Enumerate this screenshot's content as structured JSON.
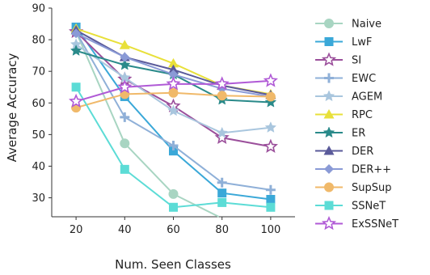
{
  "chart_data": {
    "type": "line",
    "title": "",
    "xlabel": "Num. Seen Classes",
    "ylabel": "Average Accuracy",
    "x": [
      20,
      40,
      60,
      80,
      100
    ],
    "x_ticks": [
      "20",
      "40",
      "60",
      "80",
      "100"
    ],
    "y_ticks": [
      "30",
      "40",
      "50",
      "60",
      "70",
      "80",
      "90"
    ],
    "xlim": [
      10,
      110
    ],
    "ylim": [
      24,
      90
    ],
    "grid": false,
    "legend_position": "right",
    "series": [
      {
        "name": "Naive",
        "color": "#a8d5c2",
        "marker": "circle",
        "values": [
          82.5,
          47.2,
          31.2,
          23.5,
          null
        ]
      },
      {
        "name": "LwF",
        "color": "#3aa8d8",
        "marker": "square",
        "values": [
          84.0,
          62.0,
          44.8,
          31.5,
          29.5
        ]
      },
      {
        "name": "SI",
        "color": "#9b4f9b",
        "marker": "star-open",
        "values": [
          82.5,
          67.5,
          59.0,
          49.0,
          46.2
        ]
      },
      {
        "name": "EWC",
        "color": "#8fb0d8",
        "marker": "plus",
        "values": [
          82.5,
          55.5,
          46.5,
          34.8,
          32.5
        ]
      },
      {
        "name": "AGEM",
        "color": "#a9c6de",
        "marker": "star",
        "values": [
          78.5,
          68.0,
          57.5,
          50.5,
          52.2
        ]
      },
      {
        "name": "RPC",
        "color": "#e8e03a",
        "marker": "triangle",
        "values": [
          83.5,
          78.3,
          72.5,
          65.5,
          62.8
        ]
      },
      {
        "name": "ER",
        "color": "#2a8a8a",
        "marker": "star",
        "values": [
          76.5,
          72.0,
          69.0,
          61.0,
          60.2
        ]
      },
      {
        "name": "DER",
        "color": "#5a5a9a",
        "marker": "triangle",
        "values": [
          83.0,
          74.5,
          70.5,
          65.5,
          62.5
        ]
      },
      {
        "name": "DER++",
        "color": "#8a9ad6",
        "marker": "diamond",
        "values": [
          82.0,
          74.5,
          69.0,
          64.5,
          62.0
        ]
      },
      {
        "name": "SupSup",
        "color": "#f0b96a",
        "marker": "circle",
        "values": [
          58.5,
          62.8,
          63.2,
          62.3,
          62.0
        ]
      },
      {
        "name": "SSNeT",
        "color": "#5cdcd6",
        "marker": "square",
        "values": [
          65.0,
          39.0,
          27.0,
          28.5,
          27.0
        ]
      },
      {
        "name": "ExSSNeT",
        "color": "#b05ad6",
        "marker": "star-open",
        "values": [
          60.5,
          65.0,
          66.0,
          66.0,
          67.0
        ]
      }
    ]
  }
}
